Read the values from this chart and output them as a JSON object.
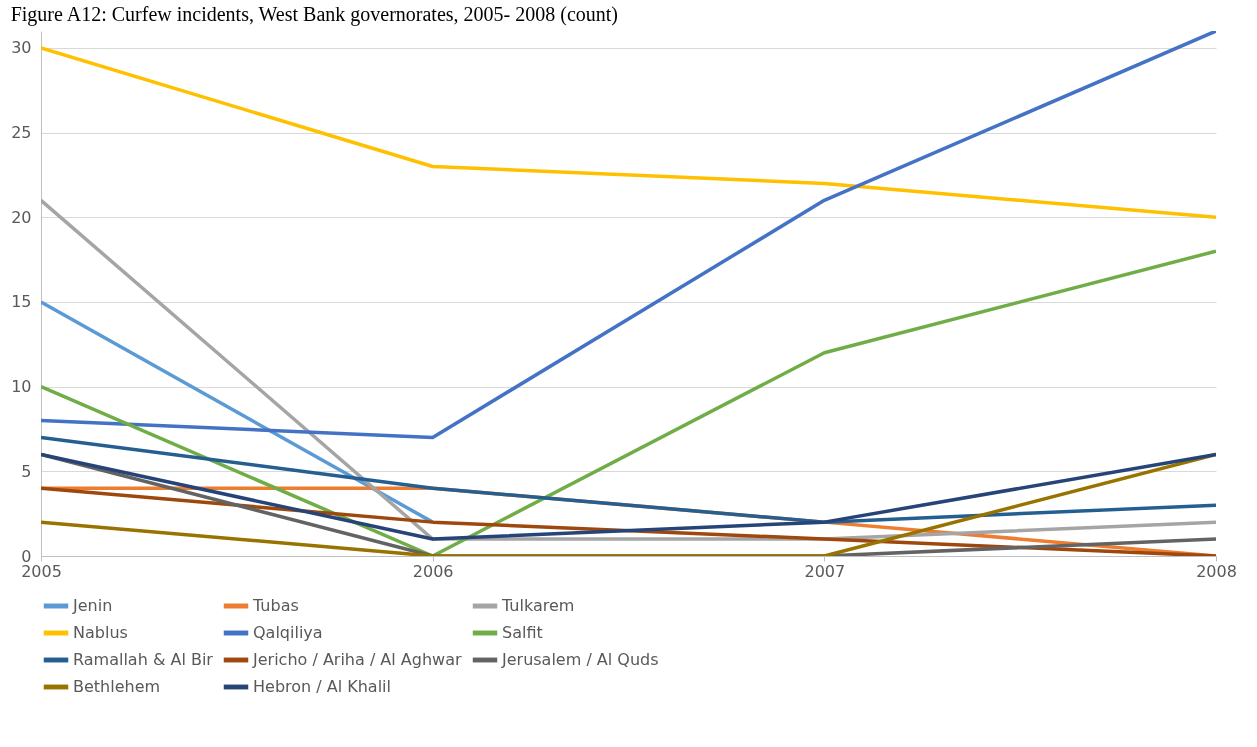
{
  "chart_data": {
    "type": "line",
    "title": "Figure A12: Curfew incidents, West Bank governorates, 2005- 2008 (count)",
    "x": [
      2005,
      2006,
      2007,
      2008
    ],
    "xlim": [
      2005,
      2008
    ],
    "xticks": [
      2005,
      2006,
      2007,
      2008
    ],
    "ylim": [
      0,
      31
    ],
    "yticks": [
      0,
      5,
      10,
      15,
      20,
      25,
      30
    ],
    "grid": "y",
    "legend": "bottom",
    "marker": "none",
    "line_style": "solid",
    "series": [
      {
        "name": "Jenin",
        "color": "#5b9bd5",
        "values": [
          15,
          2,
          null,
          null
        ]
      },
      {
        "name": "Tubas",
        "color": "#ed7d31",
        "values": [
          4,
          4,
          2,
          0
        ]
      },
      {
        "name": "Tulkarem",
        "color": "#a5a5a5",
        "values": [
          21,
          1,
          1,
          2
        ]
      },
      {
        "name": "Nablus",
        "color": "#ffc000",
        "values": [
          30,
          23,
          22,
          20
        ]
      },
      {
        "name": "Qalqiliya",
        "color": "#4472c4",
        "values": [
          8,
          7,
          21,
          31
        ]
      },
      {
        "name": "Salfit",
        "color": "#70ad47",
        "values": [
          10,
          0,
          12,
          18
        ]
      },
      {
        "name": "Ramallah & Al Bir",
        "color": "#255e91",
        "values": [
          7,
          4,
          2,
          3
        ]
      },
      {
        "name": "Jericho / Ariha / Al Aghwar",
        "color": "#9e480e",
        "values": [
          4,
          2,
          1,
          0
        ]
      },
      {
        "name": "Jerusalem / Al Quds",
        "color": "#636363",
        "values": [
          6,
          0,
          0,
          1
        ]
      },
      {
        "name": "Bethlehem",
        "color": "#997300",
        "values": [
          2,
          0,
          0,
          6
        ]
      },
      {
        "name": "Hebron / Al Khalil",
        "color": "#264478",
        "values": [
          6,
          1,
          2,
          6
        ]
      }
    ]
  }
}
